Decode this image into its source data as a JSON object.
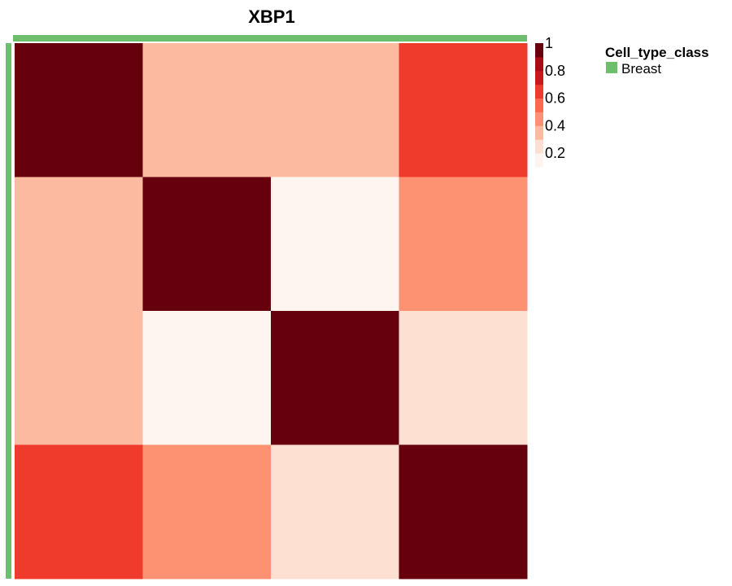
{
  "chart_data": {
    "type": "heatmap",
    "title": "XBP1",
    "rows": 4,
    "cols": 4,
    "values": [
      [
        1.0,
        0.35,
        0.35,
        0.7
      ],
      [
        0.35,
        1.0,
        0.1,
        0.45
      ],
      [
        0.35,
        0.1,
        1.0,
        0.2
      ],
      [
        0.7,
        0.45,
        0.2,
        1.0
      ]
    ],
    "colorbar": {
      "ticks": [
        1,
        0.8,
        0.6,
        0.4,
        0.2
      ],
      "tick_labels": [
        "1",
        "0.8",
        "0.6",
        "0.4",
        "0.2"
      ],
      "range": [
        0.1,
        1.0
      ],
      "colors": [
        "#fff5f0",
        "#fde0d2",
        "#fcbba1",
        "#fc9272",
        "#fb6a4a",
        "#ef3b2c",
        "#cb181d",
        "#a50f15",
        "#67000d"
      ]
    },
    "annotation": {
      "title": "Cell_type_class",
      "categories": [
        "Breast"
      ],
      "colors": [
        "#6dbf6d"
      ]
    }
  }
}
